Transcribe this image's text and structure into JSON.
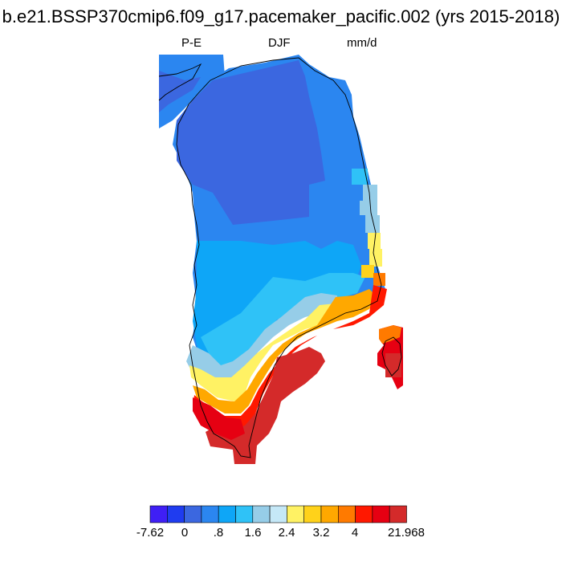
{
  "title": "b.e21.BSSP370cmip6.f09_g17.pacemaker_pacific.002 (yrs 2015-2018)",
  "subtitle": {
    "left": "P-E",
    "center": "DJF",
    "right": "mm/d"
  },
  "colorbar": {
    "colors": [
      "#3f1ff5",
      "#1f3cf0",
      "#3b67e0",
      "#2b86f0",
      "#0ea6f7",
      "#2fc2f7",
      "#96cde8",
      "#c5e8f7",
      "#fff264",
      "#ffd21a",
      "#ffa800",
      "#ff7a00",
      "#ff1800",
      "#e60012",
      "#d42a2a"
    ],
    "labels": [
      "-7.62",
      "0",
      ".8",
      "1.6",
      "2.4",
      "3.2",
      "4",
      "21.968"
    ]
  },
  "regions": [
    {
      "name": "west-coast-top-region",
      "color": "#2b86f0"
    },
    {
      "name": "interior-dark-region",
      "color": "#3b67e0"
    },
    {
      "name": "mid-blue-region",
      "color": "#2b86f0"
    },
    {
      "name": "south-blue-region",
      "color": "#0ea6f7"
    },
    {
      "name": "southeast-light-region",
      "color": "#2fc2f7"
    },
    {
      "name": "coastal-pale-region",
      "color": "#96cde8"
    },
    {
      "name": "coastal-yellow-region",
      "color": "#fff264"
    },
    {
      "name": "coastal-orange-region",
      "color": "#ffa800"
    },
    {
      "name": "coastal-red-region",
      "color": "#ff1800"
    },
    {
      "name": "south-tip-red-region",
      "color": "#d42a2a"
    },
    {
      "name": "iceland-region",
      "color": "#e60012"
    }
  ]
}
